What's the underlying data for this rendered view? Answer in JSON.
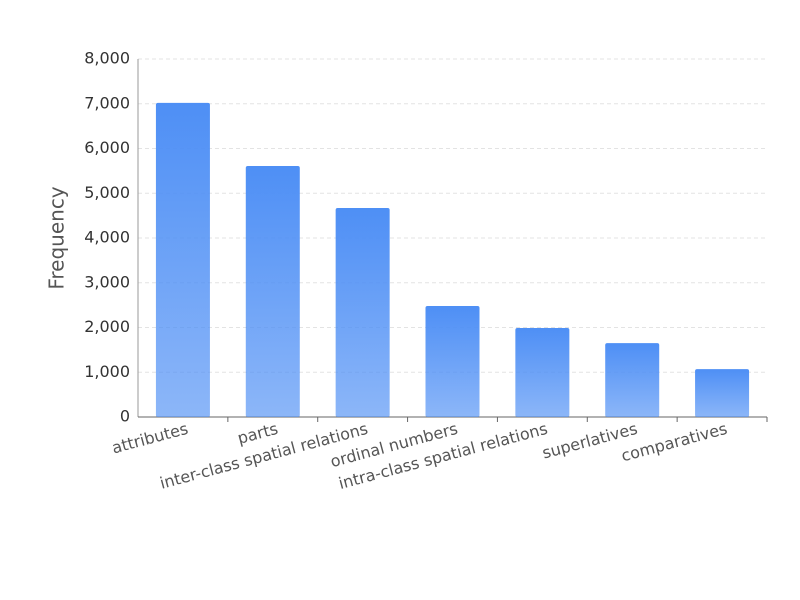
{
  "chart_data": {
    "type": "bar",
    "ylabel": "Frequency",
    "categories": [
      "attributes",
      "parts",
      "inter-class spatial relations",
      "ordinal numbers",
      "intra-class spatial relations",
      "superlatives",
      "comparatives"
    ],
    "values": [
      7020,
      5610,
      4670,
      2480,
      1990,
      1650,
      1070
    ],
    "color": "#4e8ff5",
    "ylim": [
      0,
      8000
    ],
    "yticks": [
      0,
      {
        "value": 1000,
        "label": "1,000"
      },
      {
        "value": 2000,
        "label": "2,000"
      },
      {
        "value": 3000,
        "label": "3,000"
      },
      {
        "value": 4000,
        "label": "4,000"
      },
      {
        "value": 5000,
        "label": "5,000"
      },
      {
        "value": 6000,
        "label": "6,000"
      },
      {
        "value": 7000,
        "label": "7,000"
      },
      {
        "value": 8000,
        "label": "8,000"
      }
    ],
    "grid": true
  }
}
